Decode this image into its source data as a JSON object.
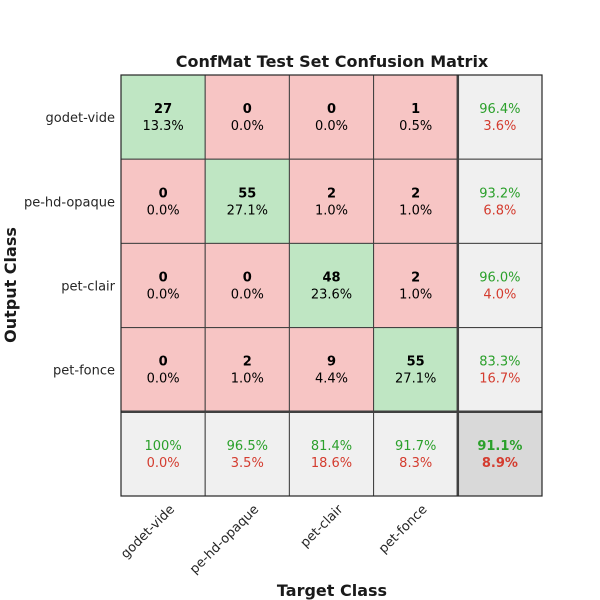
{
  "chart_data": {
    "type": "heatmap",
    "title": "ConfMat Test Set Confusion Matrix",
    "xlabel": "Target Class",
    "ylabel": "Output Class",
    "classes": [
      "godet-vide",
      "pe-hd-opaque",
      "pet-clair",
      "pet-fonce"
    ],
    "counts": [
      [
        27,
        0,
        0,
        1
      ],
      [
        0,
        55,
        2,
        2
      ],
      [
        0,
        0,
        48,
        2
      ],
      [
        0,
        2,
        9,
        55
      ]
    ],
    "percents": [
      [
        "13.3%",
        "0.0%",
        "0.0%",
        "0.5%"
      ],
      [
        "0.0%",
        "27.1%",
        "1.0%",
        "1.0%"
      ],
      [
        "0.0%",
        "0.0%",
        "23.6%",
        "1.0%"
      ],
      [
        "0.0%",
        "1.0%",
        "4.4%",
        "27.1%"
      ]
    ],
    "row_summary": [
      {
        "correct": "96.4%",
        "error": "3.6%"
      },
      {
        "correct": "93.2%",
        "error": "6.8%"
      },
      {
        "correct": "96.0%",
        "error": "4.0%"
      },
      {
        "correct": "83.3%",
        "error": "16.7%"
      }
    ],
    "col_summary": [
      {
        "correct": "100%",
        "error": "0.0%"
      },
      {
        "correct": "96.5%",
        "error": "3.5%"
      },
      {
        "correct": "81.4%",
        "error": "18.6%"
      },
      {
        "correct": "91.7%",
        "error": "8.3%"
      }
    ],
    "overall": {
      "correct": "91.1%",
      "error": "8.9%"
    },
    "colors": {
      "diagonal": "#bfe6c3",
      "off_diagonal": "#f7c5c4",
      "summary": "#f0f0f0",
      "overall": "#d9d9d9",
      "correct_text": "#2ba02b",
      "error_text": "#d43c2f"
    }
  }
}
